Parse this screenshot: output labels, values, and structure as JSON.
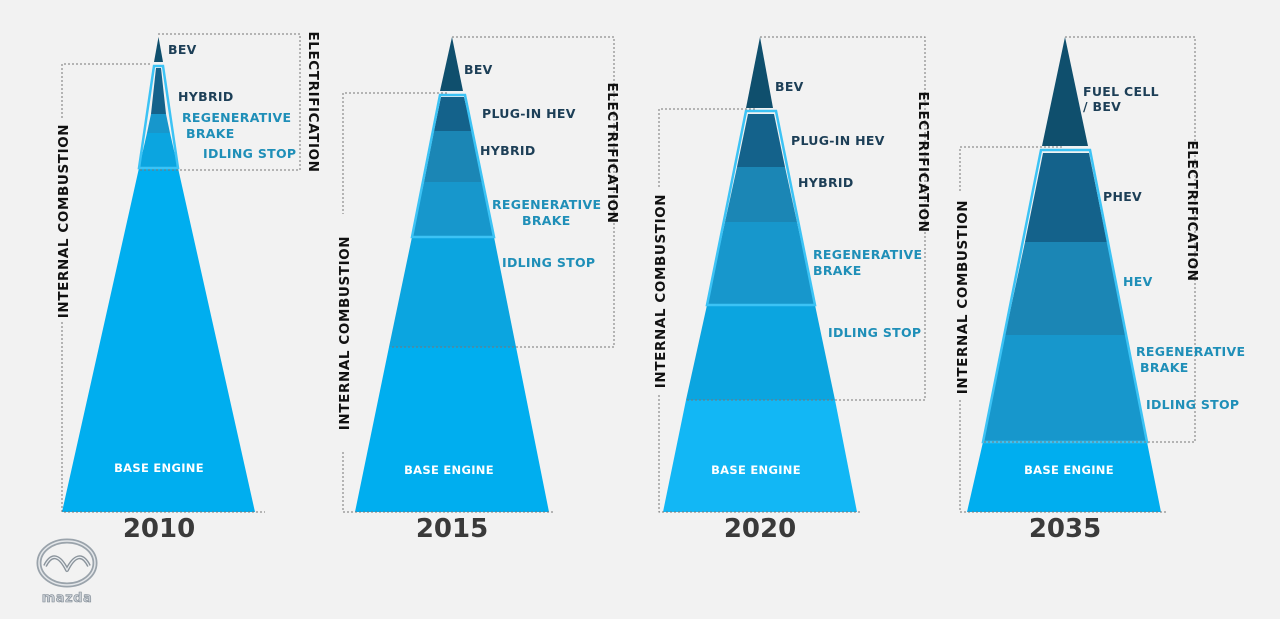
{
  "brand": {
    "name": "mazda"
  },
  "axis_labels": {
    "internal": "INTERNAL COMBUSTION",
    "electric": "ELECTRIFICATION"
  },
  "colors": {
    "base": "#00aeef",
    "idling": "#0ba5e0",
    "regen": "#1797cc",
    "hybrid": "#1b86b5",
    "plugin": "#14628b",
    "top": "#0f4f6d",
    "outline": "#3cc3f5"
  },
  "pyramids": [
    {
      "year": "2010",
      "labels": {
        "top": "BEV",
        "l1": "HYBRID",
        "l2a": "REGENERATIVE",
        "l2b": "BRAKE",
        "l3": "IDLING STOP",
        "base": "BASE ENGINE"
      }
    },
    {
      "year": "2015",
      "labels": {
        "top": "BEV",
        "l1": "PLUG-IN HEV",
        "l2": "HYBRID",
        "l3a": "REGENERATIVE",
        "l3b": "BRAKE",
        "l4": "IDLING STOP",
        "base": "BASE ENGINE"
      }
    },
    {
      "year": "2020",
      "labels": {
        "top": "BEV",
        "l1": "PLUG-IN HEV",
        "l2": "HYBRID",
        "l3a": "REGENERATIVE",
        "l3b": "BRAKE",
        "l4": "IDLING STOP",
        "base": "BASE ENGINE"
      }
    },
    {
      "year": "2035",
      "labels": {
        "top_a": "FUEL CELL",
        "top_b": "/ BEV",
        "l1": "PHEV",
        "l2": "HEV",
        "l3a": "REGENERATIVE",
        "l3b": "BRAKE",
        "l4": "IDLING STOP",
        "base": "BASE ENGINE"
      }
    }
  ]
}
